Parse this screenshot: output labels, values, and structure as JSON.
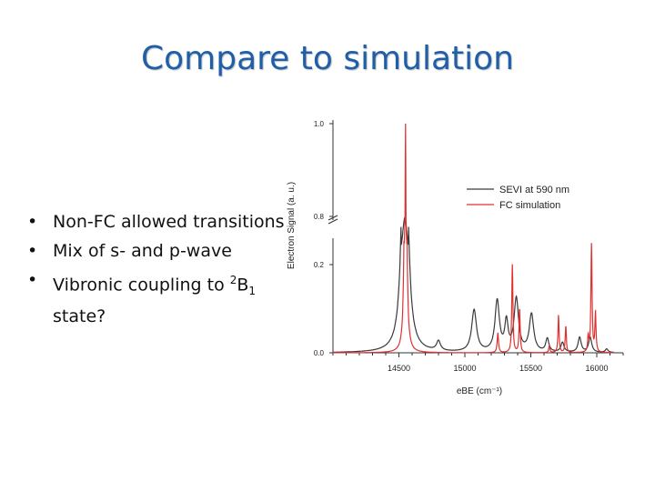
{
  "slide": {
    "title": "Compare to simulation",
    "bullets": [
      {
        "text": "Non-FC allowed transitions"
      },
      {
        "text": "Mix of s- and p-wave"
      },
      {
        "pre": "Vibronic coupling to ",
        "sup": "2",
        "base": "B",
        "sub": "1",
        "post": " state?"
      }
    ]
  },
  "colors": {
    "title": "#1f5fa8",
    "sevi": "#3a3a3a",
    "fc": "#e03030"
  },
  "chart_data": {
    "type": "line",
    "xlabel": "eBE (cm⁻¹)",
    "ylabel": "Electron Signal (a. u.)",
    "xlim": [
      14000,
      16200
    ],
    "x_ticks": [
      14500,
      15000,
      15500,
      16000
    ],
    "y_ticks_lower": [
      "0.0",
      "0.2"
    ],
    "y_ticks_upper": [
      "0.8",
      "1.0"
    ],
    "axis_break": "between 0.2 and 0.8",
    "legend_position": "top-right",
    "series": [
      {
        "name": "SEVI at 590 nm",
        "color": "#3a3a3a",
        "peaks": [
          [
            14545,
            0.78,
            22
          ],
          [
            14800,
            0.022,
            18
          ],
          [
            15070,
            0.095,
            22
          ],
          [
            15245,
            0.115,
            20
          ],
          [
            15315,
            0.065,
            15
          ],
          [
            15390,
            0.12,
            20
          ],
          [
            15505,
            0.085,
            20
          ],
          [
            15625,
            0.03,
            14
          ],
          [
            15740,
            0.022,
            14
          ],
          [
            15870,
            0.034,
            14
          ],
          [
            15950,
            0.034,
            14
          ],
          [
            16075,
            0.008,
            12
          ]
        ]
      },
      {
        "name": "FC simulation",
        "color": "#e03030",
        "peaks": [
          [
            14550,
            1.0,
            7
          ],
          [
            15250,
            0.045,
            6
          ],
          [
            15360,
            0.2,
            5
          ],
          [
            15415,
            0.1,
            5
          ],
          [
            15640,
            0.015,
            5
          ],
          [
            15710,
            0.085,
            5
          ],
          [
            15765,
            0.06,
            5
          ],
          [
            15935,
            0.035,
            5
          ],
          [
            15960,
            0.245,
            5
          ],
          [
            15990,
            0.09,
            5
          ]
        ]
      }
    ]
  }
}
